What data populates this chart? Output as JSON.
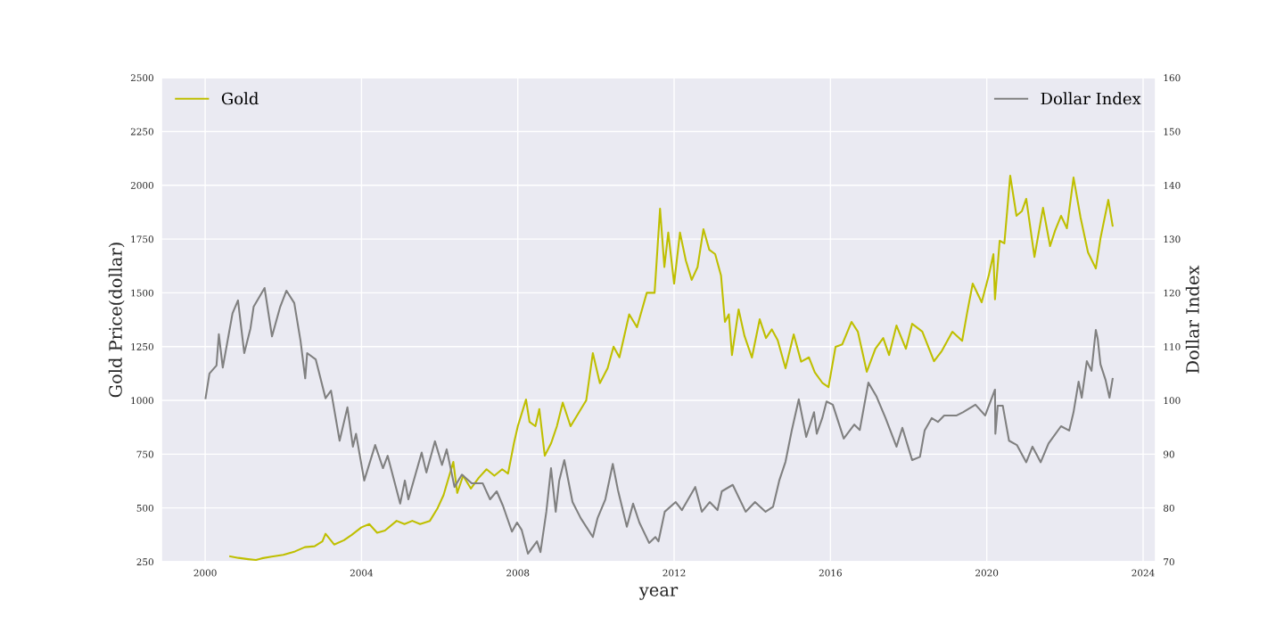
{
  "chart_data": {
    "type": "line",
    "xlabel": "year",
    "ylabel": "Gold Price(dollar)",
    "y2label": "Dollar Index",
    "xlim": [
      1998.88,
      2024.32
    ],
    "xticks": [
      2000,
      2004,
      2008,
      2012,
      2016,
      2020,
      2024
    ],
    "ylim": [
      250,
      2500
    ],
    "yticks": [
      250,
      500,
      750,
      1000,
      1250,
      1500,
      1750,
      2000,
      2250,
      2500
    ],
    "y2lim": [
      70,
      160
    ],
    "y2ticks": [
      70,
      80,
      90,
      100,
      110,
      120,
      130,
      140,
      150,
      160
    ],
    "grid": true,
    "legend": "top",
    "series": [
      {
        "name": "Gold",
        "color": "#bfbf00",
        "axis": "y",
        "x": [
          2000.64,
          2000.85,
          2001.1,
          2001.3,
          2001.45,
          2001.7,
          2002.0,
          2002.3,
          2002.55,
          2002.8,
          2003.0,
          2003.08,
          2003.3,
          2003.55,
          2003.75,
          2004.0,
          2004.2,
          2004.4,
          2004.6,
          2004.9,
          2005.1,
          2005.3,
          2005.5,
          2005.75,
          2005.95,
          2006.1,
          2006.35,
          2006.45,
          2006.6,
          2006.8,
          2007.0,
          2007.2,
          2007.4,
          2007.6,
          2007.75,
          2007.9,
          2008.0,
          2008.21,
          2008.3,
          2008.45,
          2008.55,
          2008.69,
          2008.85,
          2009.0,
          2009.15,
          2009.35,
          2009.55,
          2009.75,
          2009.92,
          2010.1,
          2010.3,
          2010.45,
          2010.6,
          2010.85,
          2011.05,
          2011.3,
          2011.5,
          2011.64,
          2011.75,
          2011.85,
          2012.0,
          2012.15,
          2012.3,
          2012.45,
          2012.6,
          2012.75,
          2012.9,
          2013.05,
          2013.2,
          2013.3,
          2013.4,
          2013.48,
          2013.65,
          2013.8,
          2013.99,
          2014.19,
          2014.35,
          2014.5,
          2014.65,
          2014.85,
          2015.06,
          2015.25,
          2015.45,
          2015.6,
          2015.8,
          2015.95,
          2016.13,
          2016.3,
          2016.54,
          2016.7,
          2016.93,
          2017.15,
          2017.35,
          2017.5,
          2017.69,
          2017.93,
          2018.09,
          2018.35,
          2018.65,
          2018.85,
          2019.12,
          2019.37,
          2019.5,
          2019.64,
          2019.87,
          2020.05,
          2020.17,
          2020.21,
          2020.33,
          2020.45,
          2020.6,
          2020.76,
          2020.9,
          2021.01,
          2021.22,
          2021.44,
          2021.62,
          2021.75,
          2021.9,
          2022.05,
          2022.22,
          2022.4,
          2022.59,
          2022.79,
          2022.91,
          2023.11,
          2023.22
        ],
        "values": [
          275,
          268,
          262,
          258,
          266,
          274,
          282,
          298,
          318,
          322,
          345,
          380,
          330,
          350,
          375,
          410,
          425,
          385,
          395,
          440,
          425,
          440,
          425,
          440,
          500,
          560,
          714,
          570,
          650,
          590,
          640,
          680,
          650,
          680,
          660,
          800,
          880,
          1004,
          900,
          880,
          960,
          743,
          800,
          880,
          990,
          880,
          940,
          1000,
          1220,
          1080,
          1150,
          1250,
          1200,
          1400,
          1340,
          1500,
          1500,
          1891,
          1620,
          1780,
          1543,
          1780,
          1650,
          1560,
          1620,
          1796,
          1700,
          1680,
          1580,
          1365,
          1400,
          1211,
          1423,
          1300,
          1199,
          1377,
          1290,
          1330,
          1280,
          1149,
          1307,
          1180,
          1200,
          1130,
          1080,
          1062,
          1249,
          1260,
          1365,
          1320,
          1133,
          1240,
          1290,
          1211,
          1348,
          1240,
          1356,
          1320,
          1182,
          1230,
          1319,
          1277,
          1410,
          1543,
          1456,
          1580,
          1680,
          1470,
          1742,
          1730,
          2044,
          1858,
          1880,
          1937,
          1667,
          1895,
          1717,
          1790,
          1858,
          1800,
          2036,
          1850,
          1688,
          1613,
          1754,
          1932,
          1812
        ]
      },
      {
        "name": "Dollar Index",
        "color": "#808080",
        "axis": "y2",
        "x": [
          2000.01,
          2000.11,
          2000.29,
          2000.35,
          2000.45,
          2000.7,
          2000.84,
          2001.0,
          2001.16,
          2001.24,
          2001.52,
          2001.71,
          2001.92,
          2002.08,
          2002.28,
          2002.44,
          2002.56,
          2002.61,
          2002.83,
          2003.08,
          2003.22,
          2003.44,
          2003.64,
          2003.78,
          2003.86,
          2004.07,
          2004.35,
          2004.55,
          2004.67,
          2004.99,
          2005.11,
          2005.2,
          2005.54,
          2005.66,
          2005.88,
          2006.06,
          2006.18,
          2006.38,
          2006.57,
          2006.82,
          2007.1,
          2007.29,
          2007.46,
          2007.62,
          2007.85,
          2007.98,
          2008.1,
          2008.26,
          2008.49,
          2008.58,
          2008.73,
          2008.85,
          2008.97,
          2009.06,
          2009.19,
          2009.4,
          2009.61,
          2009.92,
          2010.04,
          2010.24,
          2010.43,
          2010.56,
          2010.79,
          2010.95,
          2011.11,
          2011.36,
          2011.52,
          2011.6,
          2011.76,
          2012.04,
          2012.2,
          2012.54,
          2012.71,
          2012.91,
          2013.11,
          2013.22,
          2013.5,
          2013.83,
          2014.07,
          2014.34,
          2014.53,
          2014.69,
          2014.85,
          2015.01,
          2015.19,
          2015.38,
          2015.58,
          2015.65,
          2015.79,
          2015.9,
          2016.06,
          2016.34,
          2016.61,
          2016.75,
          2016.97,
          2017.18,
          2017.41,
          2017.69,
          2017.84,
          2018.09,
          2018.29,
          2018.41,
          2018.59,
          2018.75,
          2018.91,
          2019.23,
          2019.39,
          2019.71,
          2019.96,
          2020.21,
          2020.22,
          2020.28,
          2020.41,
          2020.57,
          2020.77,
          2021.01,
          2021.17,
          2021.38,
          2021.58,
          2021.9,
          2022.11,
          2022.22,
          2022.35,
          2022.43,
          2022.56,
          2022.68,
          2022.79,
          2022.84,
          2022.91,
          2023.04,
          2023.14,
          2023.22
        ],
        "values": [
          100.4,
          105.0,
          106.5,
          112.3,
          106.1,
          116.2,
          118.6,
          108.8,
          113.4,
          117.4,
          120.9,
          111.9,
          117.4,
          120.4,
          118.1,
          111.1,
          104.1,
          108.8,
          107.6,
          100.4,
          101.8,
          92.5,
          98.7,
          91.4,
          93.8,
          85.1,
          91.7,
          87.4,
          89.7,
          80.8,
          85.1,
          81.6,
          90.3,
          86.6,
          92.4,
          88.0,
          90.9,
          83.9,
          86.2,
          84.6,
          84.6,
          81.6,
          83.1,
          80.4,
          75.6,
          77.3,
          75.9,
          71.5,
          73.8,
          71.8,
          79.3,
          87.4,
          79.3,
          85.1,
          88.9,
          81.1,
          78.1,
          74.6,
          78.1,
          81.6,
          88.2,
          83.4,
          76.5,
          80.8,
          77.3,
          73.5,
          74.6,
          73.8,
          79.3,
          81.1,
          79.6,
          83.9,
          79.3,
          81.1,
          79.6,
          83.1,
          84.3,
          79.3,
          81.1,
          79.3,
          80.2,
          85.1,
          88.6,
          94.4,
          100.2,
          93.2,
          97.8,
          93.8,
          96.7,
          99.8,
          99.2,
          92.9,
          95.5,
          94.5,
          103.3,
          100.7,
          96.7,
          91.4,
          94.9,
          88.9,
          89.5,
          94.4,
          96.7,
          96.0,
          97.2,
          97.2,
          97.8,
          99.2,
          97.2,
          102.0,
          93.8,
          99.0,
          99.0,
          92.5,
          91.7,
          88.5,
          91.4,
          88.5,
          92.0,
          95.2,
          94.4,
          97.8,
          103.5,
          100.5,
          107.3,
          105.5,
          113.1,
          111.4,
          106.7,
          103.8,
          100.5,
          104.0
        ]
      }
    ]
  }
}
